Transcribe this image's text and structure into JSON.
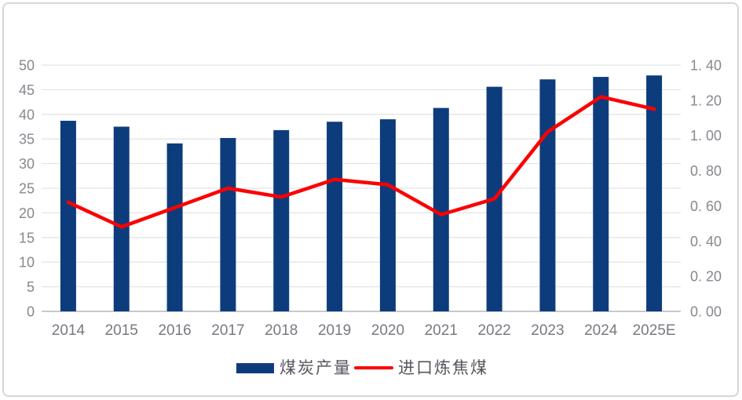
{
  "chart_data": {
    "type": "combo",
    "title": "",
    "categories": [
      "2014",
      "2015",
      "2016",
      "2017",
      "2018",
      "2019",
      "2020",
      "2021",
      "2022",
      "2023",
      "2024",
      "2025E"
    ],
    "series": [
      {
        "name": "煤炭产量",
        "type": "bar",
        "axis": "left",
        "color": "#0d3c7d",
        "values": [
          38.7,
          37.5,
          34.1,
          35.2,
          36.8,
          38.5,
          39.0,
          41.3,
          45.6,
          47.1,
          47.6,
          47.9
        ]
      },
      {
        "name": "进口炼焦煤",
        "type": "line",
        "axis": "right",
        "color": "#fc0000",
        "values": [
          0.62,
          0.48,
          0.59,
          0.7,
          0.65,
          0.75,
          0.72,
          0.55,
          0.64,
          1.02,
          1.22,
          1.15
        ]
      }
    ],
    "left_axis": {
      "min": 0,
      "max": 50,
      "step": 5,
      "tick_labels": [
        "0",
        "5",
        "10",
        "15",
        "20",
        "25",
        "30",
        "35",
        "40",
        "45",
        "50"
      ]
    },
    "right_axis": {
      "min": 0,
      "max": 1.4,
      "step": 0.2,
      "tick_labels": [
        "0. 00",
        "0. 20",
        "0. 40",
        "0. 60",
        "0. 80",
        "1. 00",
        "1. 20",
        "1. 40"
      ]
    },
    "grid": true,
    "legend_position": "bottom",
    "colors": {
      "grid": "#e4e4e6",
      "zero_line": "#c8c8cc",
      "axis_text": "#87878f",
      "category_text": "#787882"
    }
  },
  "legend": {
    "items": [
      {
        "label": "煤炭产量",
        "marker": "rect",
        "color": "#0d3c7d"
      },
      {
        "label": "进口炼焦煤",
        "marker": "line",
        "color": "#fc0000"
      }
    ]
  }
}
